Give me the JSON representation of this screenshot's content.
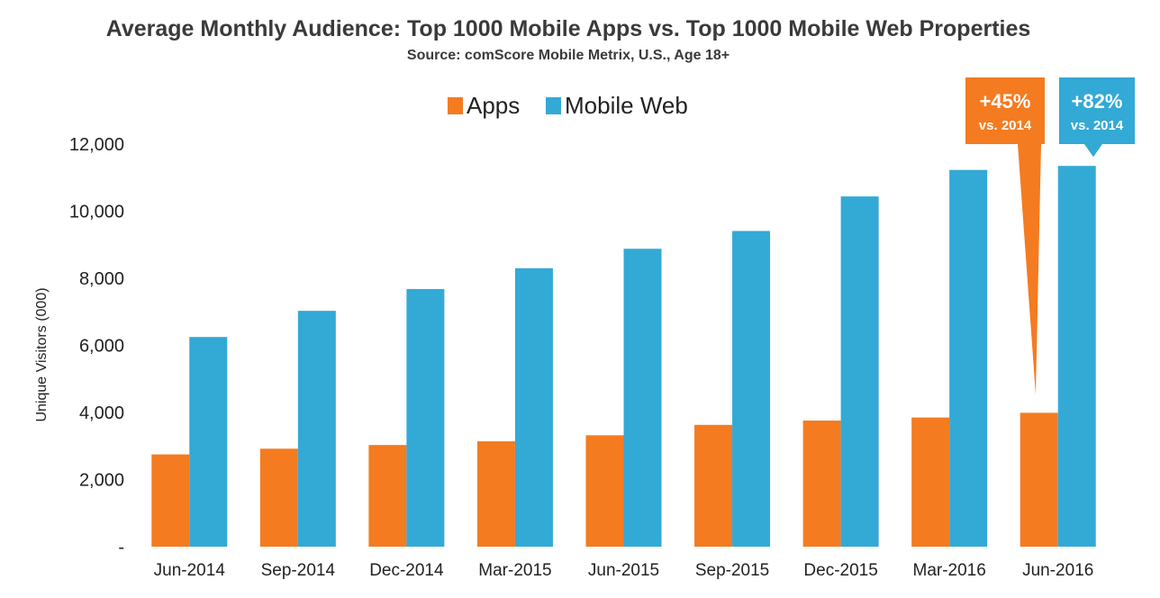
{
  "chart_data": {
    "type": "bar",
    "title": "Average Monthly Audience: Top 1000 Mobile Apps vs. Top 1000 Mobile Web Properties",
    "subtitle": "Source: comScore Mobile Metrix, U.S., Age 18+",
    "ylabel": "Unique Visitors (000)",
    "xlabel": "",
    "ylim": [
      0,
      12000
    ],
    "yticks": [
      0,
      2000,
      4000,
      6000,
      8000,
      10000,
      12000
    ],
    "ytick_labels": [
      "-",
      "2,000",
      "4,000",
      "6,000",
      "8,000",
      "10,000",
      "12,000"
    ],
    "categories": [
      "Jun-2014",
      "Sep-2014",
      "Dec-2014",
      "Mar-2015",
      "Jun-2015",
      "Sep-2015",
      "Dec-2015",
      "Mar-2016",
      "Jun-2016"
    ],
    "series": [
      {
        "name": "Apps",
        "color": "#f47b20",
        "values": [
          2750,
          2920,
          3030,
          3140,
          3320,
          3630,
          3760,
          3850,
          3990
        ]
      },
      {
        "name": "Mobile Web",
        "color": "#33a9d6",
        "values": [
          6250,
          7030,
          7680,
          8300,
          8880,
          9410,
          10440,
          11230,
          11350
        ]
      }
    ],
    "legend": "top-center",
    "grid": false,
    "annotations": [
      {
        "series": "Apps",
        "category": "Jun-2016",
        "text": "+45%",
        "subtext": "vs. 2014",
        "color": "#f47b20"
      },
      {
        "series": "Mobile Web",
        "category": "Jun-2016",
        "text": "+82%",
        "subtext": "vs. 2014",
        "color": "#33a9d6"
      }
    ]
  }
}
